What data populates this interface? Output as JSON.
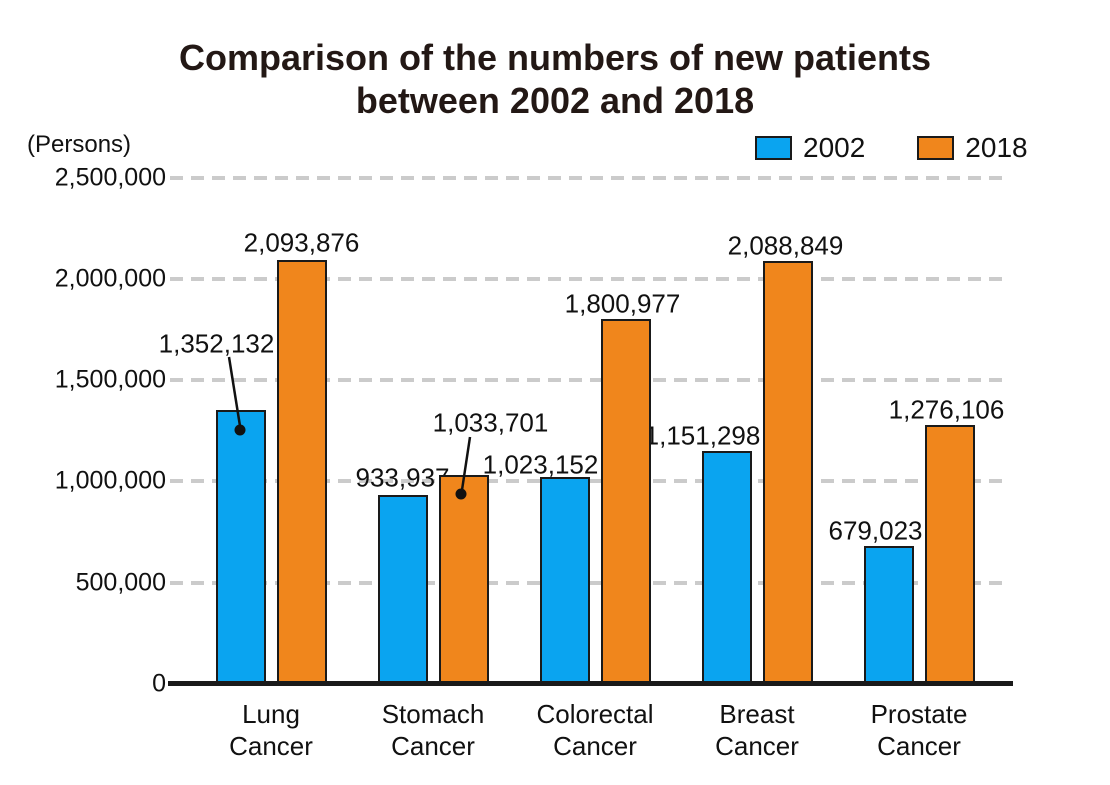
{
  "chart_data": {
    "type": "bar",
    "title_lines": [
      "Comparison of the numbers of new patients",
      "between 2002 and 2018"
    ],
    "unit_label": "(Persons)",
    "categories": [
      [
        "Lung",
        "Cancer"
      ],
      [
        "Stomach",
        "Cancer"
      ],
      [
        "Colorectal",
        "Cancer"
      ],
      [
        "Breast",
        "Cancer"
      ],
      [
        "Prostate",
        "Cancer"
      ]
    ],
    "series": [
      {
        "name": "2002",
        "color": "#0AA4F0",
        "values": [
          1352132,
          933937,
          1023152,
          1151298,
          679023
        ],
        "labels": [
          "1,352,132",
          "933,937",
          "1,023,152",
          "1,151,298",
          "679,023"
        ]
      },
      {
        "name": "2018",
        "color": "#F0861C",
        "values": [
          2093876,
          1033701,
          1800977,
          2088849,
          1276106
        ],
        "labels": [
          "2,093,876",
          "1,033,701",
          "1,800,977",
          "2,088,849",
          "1,276,106"
        ]
      }
    ],
    "y_ticks": [
      {
        "value": 2500000,
        "label": "2,500,000"
      },
      {
        "value": 2000000,
        "label": "2,000,000"
      },
      {
        "value": 1500000,
        "label": "1,500,000"
      },
      {
        "value": 1000000,
        "label": "1,000,000"
      },
      {
        "value": 500000,
        "label": "500,000"
      },
      {
        "value": 0,
        "label": "0"
      }
    ],
    "ylim": [
      0,
      2500000
    ],
    "grid": "dashed horizontal gridlines",
    "legend_position": "top-right",
    "callouts": [
      "1,352,132 uses leader line with dot into 2002 Lung bar",
      "1,033,701 uses leader line with dot into 2018 Stomach bar"
    ]
  },
  "colors": {
    "series_2002": "#0AA4F0",
    "series_2018": "#F0861C",
    "bar_border": "#1a1a1a",
    "grid": "#cbcbcb",
    "axis": "#1a1a1a",
    "title_text": "#231815",
    "text": "#111111",
    "background": "#ffffff"
  }
}
